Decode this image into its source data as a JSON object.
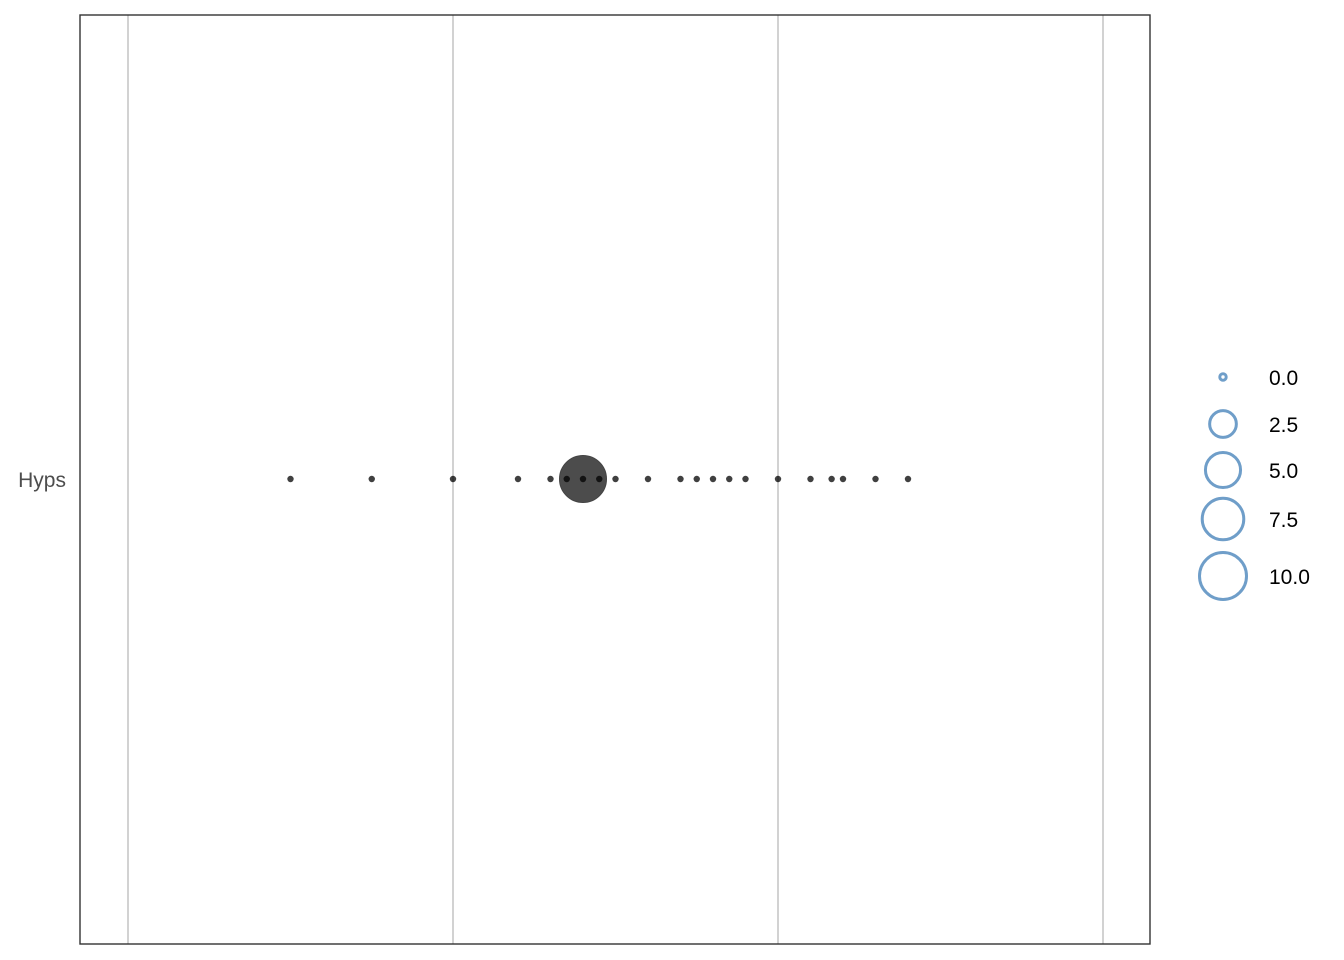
{
  "chart_data": {
    "type": "scatter",
    "title": "",
    "xlabel": "",
    "ylabel": "",
    "y_categories": [
      "Hyps"
    ],
    "x_ticks": [
      -1,
      0,
      1,
      2
    ],
    "x_tick_labels_shown": false,
    "xlim": [
      -1.15,
      2.15
    ],
    "grid": "vertical major lines",
    "point_color": "#000000",
    "series": [
      {
        "category": "Hyps",
        "points": [
          {
            "x": -0.5,
            "size": 0
          },
          {
            "x": -0.25,
            "size": 0
          },
          {
            "x": 0.0,
            "size": 0
          },
          {
            "x": 0.2,
            "size": 0
          },
          {
            "x": 0.3,
            "size": 0
          },
          {
            "x": 0.35,
            "size": 0
          },
          {
            "x": 0.4,
            "size": 0
          },
          {
            "x": 0.45,
            "size": 0
          },
          {
            "x": 0.5,
            "size": 0
          },
          {
            "x": 0.6,
            "size": 0
          },
          {
            "x": 0.7,
            "size": 0
          },
          {
            "x": 0.75,
            "size": 0
          },
          {
            "x": 0.8,
            "size": 0
          },
          {
            "x": 0.85,
            "size": 0
          },
          {
            "x": 0.9,
            "size": 0
          },
          {
            "x": 1.0,
            "size": 0
          },
          {
            "x": 1.1,
            "size": 0
          },
          {
            "x": 1.165,
            "size": 0
          },
          {
            "x": 1.2,
            "size": 0
          },
          {
            "x": 1.3,
            "size": 0
          },
          {
            "x": 1.4,
            "size": 0
          },
          {
            "x": 0.4,
            "size": 10
          }
        ]
      }
    ],
    "legend": {
      "placement": "right",
      "shape": "open circle",
      "color": "#6f9ec9",
      "entries": [
        {
          "label": "0.0",
          "size": 0
        },
        {
          "label": "2.5",
          "size": 2.5
        },
        {
          "label": "5.0",
          "size": 5
        },
        {
          "label": "7.5",
          "size": 7.5
        },
        {
          "label": "10.0",
          "size": 10
        }
      ]
    }
  }
}
